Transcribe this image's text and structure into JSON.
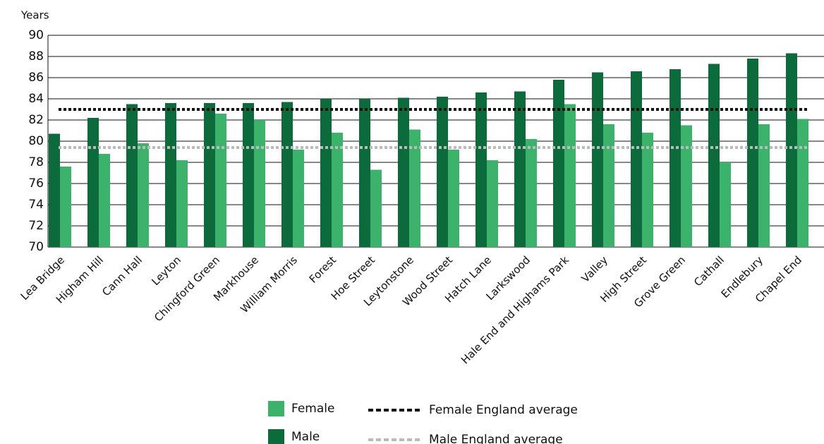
{
  "chart_data": {
    "type": "bar",
    "y_label": "Years",
    "categories": [
      "Lea Bridge",
      "Higham Hill",
      "Cann Hall",
      "Leyton",
      "Chingford Green",
      "Markhouse",
      "William Morris",
      "Forest",
      "Hoe Street",
      "Leytonstone",
      "Wood Street",
      "Hatch Lane",
      "Larkswood",
      "Hale End and Highams Park",
      "Valley",
      "High Street",
      "Grove Green",
      "Cathall",
      "Endlebury",
      "Chapel End"
    ],
    "series": [
      {
        "name": "Male",
        "color": "#0b6b3a",
        "values": [
          80.7,
          82.2,
          83.5,
          83.6,
          83.6,
          83.6,
          83.7,
          84.0,
          84.0,
          84.1,
          84.2,
          84.6,
          84.7,
          85.8,
          86.5,
          86.6,
          86.8,
          87.3,
          87.8,
          88.3
        ]
      },
      {
        "name": "Female",
        "color": "#3bb36a",
        "values": [
          77.6,
          78.8,
          79.8,
          78.2,
          82.6,
          82.0,
          79.2,
          80.8,
          77.3,
          81.1,
          79.2,
          78.2,
          80.2,
          83.5,
          81.6,
          80.8,
          81.5,
          78.0,
          81.6,
          82.1
        ]
      }
    ],
    "reference_lines": [
      {
        "name": "Female England average",
        "color": "#111111",
        "value": 83.0
      },
      {
        "name": "Male England average",
        "color": "#bbbbbb",
        "value": 79.4
      }
    ],
    "ylim": [
      70,
      90
    ],
    "yticks": [
      70,
      72,
      74,
      76,
      78,
      80,
      82,
      84,
      86,
      88,
      90
    ],
    "grid": true
  }
}
